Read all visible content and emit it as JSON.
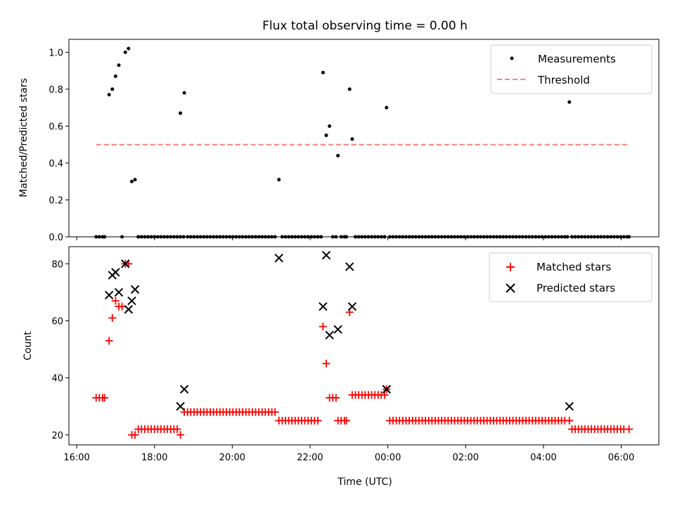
{
  "title": "Flux total observing time = 0.00 h",
  "colors": {
    "measurements": "#000000",
    "threshold": "#ff7f7f",
    "matched": "#ff0000",
    "predicted": "#000000"
  },
  "chart_data": [
    {
      "type": "scatter",
      "panel": "top",
      "ylabel": "Matched/Predicted stars",
      "ylim": [
        0.0,
        1.07
      ],
      "xlim": [
        "15:48",
        "06:58"
      ],
      "ytick_labels": [
        "0.0",
        "0.2",
        "0.4",
        "0.6",
        "0.8",
        "1.0"
      ],
      "legend": {
        "placement": "top-right",
        "entries": [
          "Measurements",
          "Threshold"
        ]
      },
      "threshold": {
        "name": "Threshold",
        "y": 0.5,
        "x_start": "16:30",
        "x_end": "06:12"
      },
      "series": [
        {
          "name": "Measurements",
          "marker": "dot",
          "points": [
            [
              "16:30",
              0.0
            ],
            [
              "16:35",
              0.0
            ],
            [
              "16:40",
              0.0
            ],
            [
              "16:43",
              0.0
            ],
            [
              "16:50",
              0.77
            ],
            [
              "16:55",
              0.8
            ],
            [
              "17:00",
              0.87
            ],
            [
              "17:05",
              0.93
            ],
            [
              "17:10",
              0.0
            ],
            [
              "17:15",
              1.0
            ],
            [
              "17:20",
              1.02
            ],
            [
              "17:25",
              0.3
            ],
            [
              "17:30",
              0.31
            ],
            [
              "17:35",
              0.0
            ],
            [
              "18:40",
              0.67
            ],
            [
              "18:46",
              0.78
            ],
            [
              "21:12",
              0.31
            ],
            [
              "22:12",
              0.0
            ],
            [
              "22:17",
              0.0
            ],
            [
              "22:20",
              0.89
            ],
            [
              "22:25",
              0.55
            ],
            [
              "22:30",
              0.6
            ],
            [
              "22:35",
              0.0
            ],
            [
              "22:40",
              0.0
            ],
            [
              "22:43",
              0.44
            ],
            [
              "22:48",
              0.0
            ],
            [
              "22:53",
              0.0
            ],
            [
              "22:56",
              0.0
            ],
            [
              "23:01",
              0.8
            ],
            [
              "23:05",
              0.53
            ],
            [
              "23:10",
              0.0
            ],
            [
              "23:55",
              0.0
            ],
            [
              "23:58",
              0.7
            ],
            [
              "04:37",
              0.0
            ],
            [
              "04:40",
              0.73
            ],
            [
              "04:44",
              0.0
            ],
            [
              "06:12",
              0.0
            ]
          ],
          "zero_runs": [
            {
              "start": "17:35",
              "end": "18:46",
              "step_min": 5
            },
            {
              "start": "18:51",
              "end": "21:07",
              "step_min": 5
            },
            {
              "start": "21:17",
              "end": "22:12",
              "step_min": 5
            },
            {
              "start": "23:10",
              "end": "23:55",
              "step_min": 5
            },
            {
              "start": "00:03",
              "end": "04:37",
              "step_min": 5
            },
            {
              "start": "04:44",
              "end": "06:12",
              "step_min": 5
            }
          ]
        }
      ]
    },
    {
      "type": "scatter",
      "panel": "bottom",
      "xlabel": "Time (UTC)",
      "ylabel": "Count",
      "ylim": [
        16.5,
        86
      ],
      "xlim": [
        "15:48",
        "06:58"
      ],
      "xtick_labels": [
        "16:00",
        "18:00",
        "20:00",
        "22:00",
        "00:00",
        "02:00",
        "04:00",
        "06:00"
      ],
      "ytick_labels": [
        "20",
        "40",
        "60",
        "80"
      ],
      "legend": {
        "placement": "top-right",
        "entries": [
          "Matched stars",
          "Predicted stars"
        ]
      },
      "series": [
        {
          "name": "Matched stars",
          "marker": "plus",
          "points": [
            [
              "16:30",
              33
            ],
            [
              "16:35",
              33
            ],
            [
              "16:40",
              33
            ],
            [
              "16:43",
              33
            ],
            [
              "16:50",
              53
            ],
            [
              "16:55",
              61
            ],
            [
              "17:00",
              67
            ],
            [
              "17:05",
              65
            ],
            [
              "17:10",
              65
            ],
            [
              "17:15",
              80
            ],
            [
              "17:20",
              80
            ],
            [
              "17:25",
              20
            ],
            [
              "17:30",
              20
            ],
            [
              "18:40",
              20
            ],
            [
              "18:46",
              28
            ],
            [
              "21:12",
              25
            ],
            [
              "22:20",
              58
            ],
            [
              "22:25",
              45
            ],
            [
              "22:30",
              33
            ],
            [
              "22:35",
              33
            ],
            [
              "22:40",
              33
            ],
            [
              "22:43",
              25
            ],
            [
              "22:48",
              25
            ],
            [
              "22:53",
              25
            ],
            [
              "22:56",
              25
            ],
            [
              "23:01",
              63
            ],
            [
              "23:05",
              34
            ],
            [
              "23:55",
              34
            ],
            [
              "23:58",
              36
            ],
            [
              "04:40",
              25
            ],
            [
              "04:44",
              22
            ],
            [
              "06:12",
              22
            ]
          ],
          "runs": [
            {
              "start": "17:35",
              "end": "18:35",
              "step_min": 5,
              "value": 22
            },
            {
              "start": "18:51",
              "end": "21:07",
              "step_min": 5,
              "value": 28
            },
            {
              "start": "21:17",
              "end": "22:15",
              "step_min": 5,
              "value": 25
            },
            {
              "start": "23:10",
              "end": "23:50",
              "step_min": 5,
              "value": 34
            },
            {
              "start": "00:03",
              "end": "04:37",
              "step_min": 5,
              "value": 25
            },
            {
              "start": "04:49",
              "end": "06:07",
              "step_min": 5,
              "value": 22
            }
          ]
        },
        {
          "name": "Predicted stars",
          "marker": "x",
          "points": [
            [
              "16:50",
              69
            ],
            [
              "16:55",
              76
            ],
            [
              "17:00",
              77
            ],
            [
              "17:05",
              70
            ],
            [
              "17:15",
              80
            ],
            [
              "17:20",
              64
            ],
            [
              "17:25",
              67
            ],
            [
              "17:30",
              71
            ],
            [
              "18:40",
              30
            ],
            [
              "18:46",
              36
            ],
            [
              "21:12",
              82
            ],
            [
              "22:20",
              65
            ],
            [
              "22:25",
              83
            ],
            [
              "22:30",
              55
            ],
            [
              "22:43",
              57
            ],
            [
              "23:01",
              79
            ],
            [
              "23:05",
              65
            ],
            [
              "23:58",
              36
            ],
            [
              "04:40",
              30
            ]
          ]
        }
      ]
    }
  ]
}
